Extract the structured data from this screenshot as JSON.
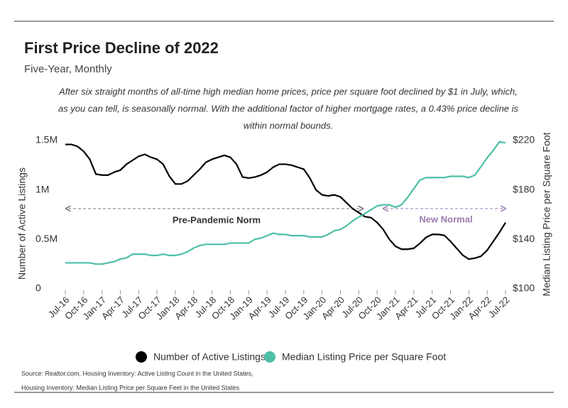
{
  "chart_data": {
    "type": "line",
    "title": "First Price Decline of 2022",
    "subtitle": "Five-Year, Monthly",
    "note": [
      "After six straight months of all-time high median home prices, price per square foot declined by $1 in July, which,",
      "as you can tell, is seasonally normal. With the additional factor of higher mortgage rates, a 0.43% price decline is",
      "within normal bounds."
    ],
    "source": [
      "Source:  Realtor.com, Housing Inventory: Active Listing Count in the United States,",
      "Housing Inventory: Median Listing Price per Square Feet in the United States"
    ],
    "y_label": "Number of Active Listings",
    "y2_label": "Median Listing Price per Square Foot",
    "categories": [
      "Jul-16",
      null,
      null,
      "Oct-16",
      null,
      null,
      "Jan-17",
      null,
      null,
      "Apr-17",
      null,
      null,
      "Jul-17",
      null,
      null,
      "Oct-17",
      null,
      null,
      "Jan-18",
      null,
      null,
      "Apr-18",
      null,
      null,
      "Jul-18",
      null,
      null,
      "Oct-18",
      null,
      null,
      "Jan-19",
      null,
      null,
      "Apr-19",
      null,
      null,
      "Jul-19",
      null,
      null,
      "Oct-19",
      null,
      null,
      "Jan-20",
      null,
      null,
      "Apr-20",
      null,
      null,
      "Jul-20",
      null,
      null,
      "Oct-20",
      null,
      null,
      "Jan-21",
      null,
      null,
      "Apr-21",
      null,
      null,
      "Jul-21",
      null,
      null,
      "Oct-21",
      null,
      null,
      "Jan-22",
      null,
      null,
      "Apr-22",
      null,
      null,
      "Jul-22"
    ],
    "series": [
      {
        "name": "Number of Active Listings",
        "color": "#000000",
        "axis": "y",
        "values": [
          1460000,
          1460000,
          1440000,
          1390000,
          1310000,
          1160000,
          1150000,
          1150000,
          1180000,
          1200000,
          1260000,
          1300000,
          1340000,
          1360000,
          1330000,
          1310000,
          1260000,
          1140000,
          1060000,
          1060000,
          1090000,
          1150000,
          1210000,
          1280000,
          1310000,
          1330000,
          1350000,
          1330000,
          1260000,
          1130000,
          1120000,
          1130000,
          1150000,
          1180000,
          1230000,
          1260000,
          1260000,
          1250000,
          1230000,
          1210000,
          1120000,
          1000000,
          950000,
          940000,
          950000,
          930000,
          870000,
          810000,
          770000,
          730000,
          720000,
          670000,
          600000,
          500000,
          430000,
          400000,
          400000,
          410000,
          460000,
          520000,
          550000,
          550000,
          540000,
          480000,
          410000,
          340000,
          300000,
          310000,
          330000,
          390000,
          480000,
          570000,
          670000
        ]
      },
      {
        "name": "Median Listing Price per Square Foot",
        "color": "#4dbfa6",
        "axis": "y2",
        "values": [
          121,
          121,
          121,
          121,
          121,
          120,
          120,
          121,
          122,
          124,
          125,
          128,
          128,
          128,
          127,
          127,
          128,
          127,
          127,
          128,
          130,
          133,
          135,
          136,
          136,
          136,
          136,
          137,
          137,
          137,
          137,
          140,
          141,
          143,
          145,
          144,
          144,
          143,
          143,
          143,
          142,
          142,
          142,
          144,
          147,
          148,
          151,
          155,
          158,
          161,
          164,
          167,
          168,
          168,
          166,
          168,
          174,
          181,
          188,
          190,
          190,
          190,
          190,
          191,
          191,
          191,
          190,
          192,
          199,
          206,
          212,
          219,
          218
        ]
      }
    ],
    "ylim": [
      0,
      1500000
    ],
    "yticks": [
      0,
      {
        "value": 500000,
        "label": "0.5M"
      },
      {
        "value": 1000000,
        "label": "1M"
      },
      {
        "value": 1500000,
        "label": "1.5M"
      }
    ],
    "y2lim": [
      100,
      220
    ],
    "y2ticks": [
      {
        "value": 100,
        "label": "$100"
      },
      {
        "value": 140,
        "label": "$140"
      },
      {
        "value": 180,
        "label": "$180"
      },
      {
        "value": 220,
        "label": "$220"
      }
    ],
    "annotations": [
      {
        "text": "Pre-Pandemic Norm",
        "color": "#333333"
      },
      {
        "text": "New Normal",
        "color": "#9b7bb0"
      }
    ],
    "grid": false
  }
}
